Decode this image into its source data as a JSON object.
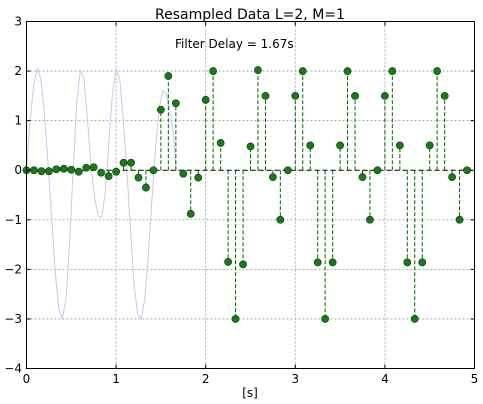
{
  "chart_data": {
    "type": "line",
    "title": "Resampled Data L=2, M=1",
    "xlabel": "[s]",
    "ylabel": "",
    "annotation": "Filter Delay = 1.67s",
    "xlim": [
      0,
      5
    ],
    "ylim": [
      -4,
      3
    ],
    "xticks": [
      0,
      1,
      2,
      3,
      4,
      5
    ],
    "yticks": [
      -4,
      -3,
      -2,
      -1,
      0,
      1,
      2,
      3
    ],
    "xtick_labels": [
      "0",
      "1",
      "2",
      "3",
      "4",
      "5"
    ],
    "ytick_labels": [
      "−4",
      "−3",
      "−2",
      "−1",
      "0",
      "1",
      "2",
      "3"
    ],
    "grid": true,
    "colors": {
      "original": "#c8c8ea",
      "resampled": "#006400",
      "marker": "#1a7a1a"
    },
    "series": [
      {
        "style": "solid-light",
        "x": [
          0.0,
          0.04,
          0.08,
          0.12,
          0.16,
          0.2,
          0.24,
          0.28,
          0.32,
          0.36,
          0.4,
          0.44,
          0.48,
          0.52,
          0.56,
          0.6,
          0.64,
          0.68,
          0.72,
          0.76,
          0.8,
          0.84,
          0.88,
          0.92,
          0.96,
          1.0,
          1.04,
          1.08,
          1.12,
          1.16,
          1.2,
          1.24,
          1.28,
          1.32,
          1.36,
          1.4,
          1.44,
          1.48,
          1.52,
          1.56,
          1.6,
          1.64,
          1.667
        ],
        "y": [
          0.0,
          0.97,
          1.72,
          2.05,
          1.85,
          1.15,
          0.15,
          -0.95,
          -2.05,
          -2.8,
          -3.0,
          -2.6,
          -1.5,
          0.0,
          1.35,
          2.02,
          1.85,
          1.05,
          0.1,
          -0.55,
          -0.92,
          -0.95,
          -0.45,
          0.55,
          1.55,
          2.05,
          1.85,
          1.0,
          0.0,
          -1.2,
          -2.3,
          -2.9,
          -3.0,
          -2.6,
          -1.7,
          -0.6,
          0.45,
          1.25,
          1.6,
          1.55,
          1.2,
          0.75,
          0.0
        ]
      },
      {
        "style": "stem",
        "x": [
          0.0,
          0.083,
          0.167,
          0.25,
          0.333,
          0.417,
          0.5,
          0.583,
          0.667,
          0.75,
          0.833,
          0.917,
          1.0,
          1.083,
          1.167,
          1.25,
          1.333,
          1.417,
          1.5,
          1.583,
          1.667,
          1.75,
          1.833,
          1.917,
          2.0,
          2.083,
          2.167,
          2.25,
          2.333,
          2.417,
          2.5,
          2.583,
          2.667,
          2.75,
          2.833,
          2.917,
          3.0,
          3.083,
          3.167,
          3.25,
          3.333,
          3.417,
          3.5,
          3.583,
          3.667,
          3.75,
          3.833,
          3.917,
          4.0,
          4.083,
          4.167,
          4.25,
          4.333,
          4.417,
          4.5,
          4.583,
          4.667,
          4.75,
          4.833,
          4.917
        ],
        "y": [
          0.0,
          0.0,
          -0.02,
          -0.02,
          0.02,
          0.03,
          0.01,
          -0.03,
          0.05,
          0.06,
          -0.05,
          -0.12,
          -0.03,
          0.15,
          0.15,
          -0.15,
          -0.35,
          0.0,
          1.22,
          1.9,
          1.35,
          -0.07,
          -0.88,
          -0.15,
          1.42,
          2.0,
          0.55,
          -1.85,
          -3.0,
          -1.9,
          0.48,
          2.02,
          1.5,
          -0.14,
          -1.0,
          0.0,
          1.5,
          2.0,
          0.5,
          -1.86,
          -3.0,
          -1.86,
          0.5,
          2.0,
          1.5,
          -0.14,
          -1.0,
          0.0,
          1.5,
          2.0,
          0.5,
          -1.86,
          -3.0,
          -1.86,
          0.5,
          2.0,
          1.5,
          -0.14,
          -1.0,
          0.0
        ]
      }
    ]
  }
}
